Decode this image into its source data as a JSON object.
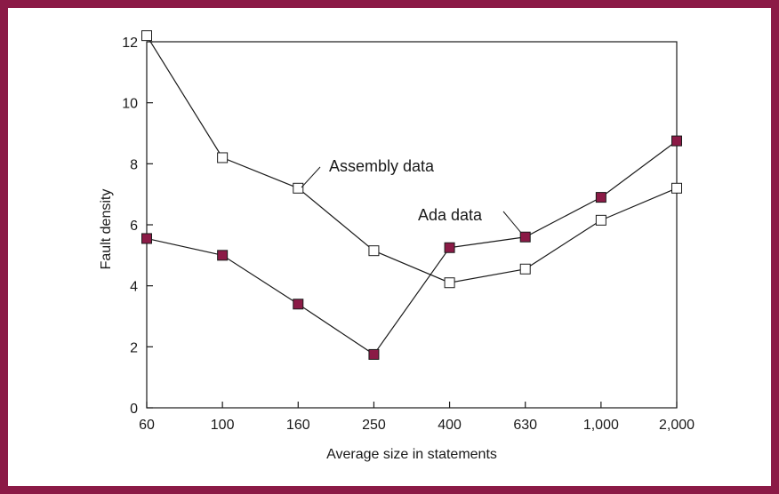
{
  "colors": {
    "frame": "#8b1a46",
    "ada_marker": "#8b1a46",
    "assembly_marker": "#ffffff",
    "line": "#1a1a1a"
  },
  "chart_data": {
    "type": "line",
    "title": "",
    "xlabel": "Average size in statements",
    "ylabel": "Fault density",
    "categories": [
      "60",
      "100",
      "160",
      "250",
      "400",
      "630",
      "1,000",
      "2,000"
    ],
    "yticks": [
      "0",
      "2",
      "4",
      "6",
      "8",
      "10",
      "12"
    ],
    "ylim": [
      0,
      12
    ],
    "grid": false,
    "series": [
      {
        "name": "Assembly data",
        "marker": "open-square",
        "values": [
          12.2,
          8.2,
          7.2,
          5.15,
          4.1,
          4.55,
          6.15,
          7.2
        ]
      },
      {
        "name": "Ada data",
        "marker": "filled-square",
        "values": [
          5.55,
          5.0,
          3.4,
          1.75,
          5.25,
          5.6,
          6.9,
          8.75
        ]
      }
    ]
  }
}
